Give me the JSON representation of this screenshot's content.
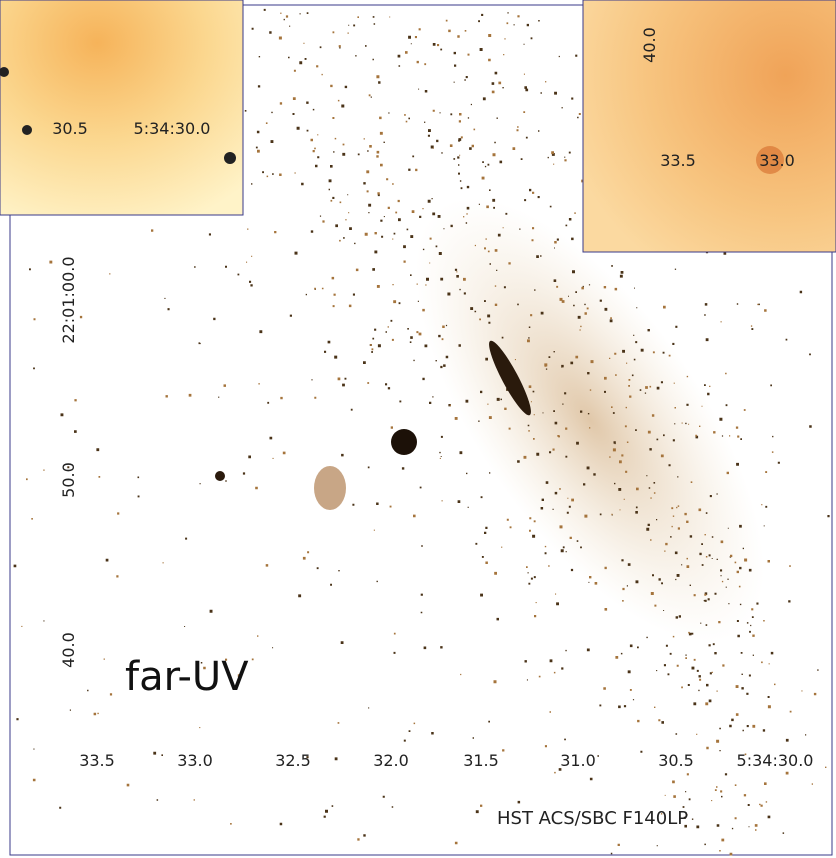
{
  "main": {
    "x_labels": [
      "33.5",
      "33.0",
      "32.5",
      "32.0",
      "31.5",
      "31.0",
      "30.5",
      "5:34:30.0"
    ],
    "y_labels": [
      "22:01:00.0",
      "50.0",
      "40.0"
    ],
    "band": "far-UV",
    "instrument": "HST ACS/SBC F140LP"
  },
  "inset_left": {
    "x_labels": [
      "30.5",
      "5:34:30.0"
    ]
  },
  "inset_right": {
    "y_label": "40.0",
    "x_labels": [
      "33.5",
      "33.0"
    ]
  }
}
